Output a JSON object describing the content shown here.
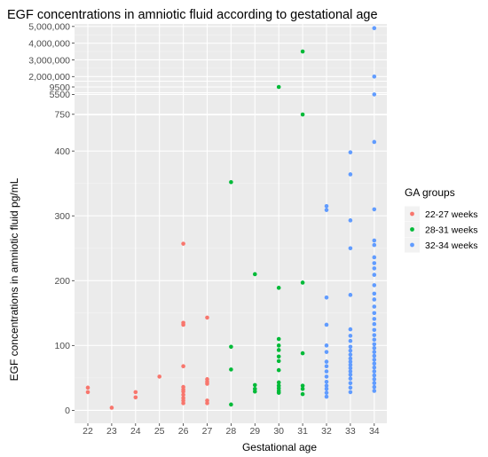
{
  "chart_data": {
    "type": "scatter",
    "title": "EGF concentrations in amniotic fluid according to gestational age",
    "xlabel": "Gestational age",
    "ylabel": "EGF concentrations in amniotic fluid pg/mL",
    "x_ticks": [
      "22",
      "23",
      "24",
      "25",
      "26",
      "27",
      "28",
      "29",
      "30",
      "31",
      "32",
      "33",
      "34"
    ],
    "y_axis_segments": [
      {
        "ticks": [
          "5,000,000",
          "4,000,000",
          "3,000,000",
          "2,000,000"
        ]
      },
      {
        "ticks": [
          "9500"
        ]
      },
      {
        "ticks": [
          "5500",
          "750"
        ]
      },
      {
        "ticks": [
          "400",
          "300",
          "200",
          "100",
          "0"
        ]
      }
    ],
    "legend": {
      "title": "GA groups",
      "position": "right",
      "items": [
        "22-27 weeks",
        "28-31 weeks",
        "32-34 weeks"
      ]
    },
    "colors": {
      "22-27 weeks": "#f8766d",
      "28-31 weeks": "#00ba38",
      "32-34 weeks": "#619cff"
    },
    "series": [
      {
        "name": "22-27 weeks",
        "points": [
          [
            22,
            35
          ],
          [
            22,
            28
          ],
          [
            23,
            4
          ],
          [
            24,
            28
          ],
          [
            24,
            20
          ],
          [
            25,
            52
          ],
          [
            26,
            257
          ],
          [
            26,
            135
          ],
          [
            26,
            132
          ],
          [
            26,
            68
          ],
          [
            26,
            36
          ],
          [
            26,
            32
          ],
          [
            26,
            29
          ],
          [
            26,
            24
          ],
          [
            26,
            19
          ],
          [
            26,
            15
          ],
          [
            26,
            11
          ],
          [
            27,
            143
          ],
          [
            27,
            48
          ],
          [
            27,
            44
          ],
          [
            27,
            41
          ],
          [
            27,
            15
          ],
          [
            27,
            11
          ]
        ]
      },
      {
        "name": "28-31 weeks",
        "points": [
          [
            28,
            352
          ],
          [
            28,
            98
          ],
          [
            28,
            63
          ],
          [
            28,
            9
          ],
          [
            29,
            210
          ],
          [
            29,
            39
          ],
          [
            29,
            33
          ],
          [
            29,
            29
          ],
          [
            30,
            9500
          ],
          [
            30,
            189
          ],
          [
            30,
            110
          ],
          [
            30,
            100
          ],
          [
            30,
            93
          ],
          [
            30,
            83
          ],
          [
            30,
            76
          ],
          [
            30,
            62
          ],
          [
            30,
            43
          ],
          [
            30,
            38
          ],
          [
            30,
            34
          ],
          [
            30,
            30
          ],
          [
            30,
            27
          ],
          [
            31,
            3500000
          ],
          [
            31,
            700
          ],
          [
            31,
            197
          ],
          [
            31,
            88
          ],
          [
            31,
            38
          ],
          [
            31,
            33
          ],
          [
            31,
            25
          ]
        ]
      },
      {
        "name": "32-34 weeks",
        "points": [
          [
            32,
            315
          ],
          [
            32,
            309
          ],
          [
            32,
            174
          ],
          [
            32,
            132
          ],
          [
            32,
            100
          ],
          [
            32,
            90
          ],
          [
            32,
            75
          ],
          [
            32,
            68
          ],
          [
            32,
            60
          ],
          [
            32,
            52
          ],
          [
            32,
            44
          ],
          [
            32,
            38
          ],
          [
            32,
            33
          ],
          [
            32,
            27
          ],
          [
            32,
            21
          ],
          [
            33,
            398
          ],
          [
            33,
            364
          ],
          [
            33,
            293
          ],
          [
            33,
            250
          ],
          [
            33,
            178
          ],
          [
            33,
            125
          ],
          [
            33,
            115
          ],
          [
            33,
            107
          ],
          [
            33,
            98
          ],
          [
            33,
            92
          ],
          [
            33,
            86
          ],
          [
            33,
            80
          ],
          [
            33,
            75
          ],
          [
            33,
            70
          ],
          [
            33,
            65
          ],
          [
            33,
            60
          ],
          [
            33,
            55
          ],
          [
            33,
            49
          ],
          [
            33,
            42
          ],
          [
            33,
            35
          ],
          [
            33,
            28
          ],
          [
            34,
            4900000
          ],
          [
            34,
            2000000
          ],
          [
            34,
            5500
          ],
          [
            34,
            414
          ],
          [
            34,
            310
          ],
          [
            34,
            262
          ],
          [
            34,
            255
          ],
          [
            34,
            236
          ],
          [
            34,
            227
          ],
          [
            34,
            219
          ],
          [
            34,
            209
          ],
          [
            34,
            193
          ],
          [
            34,
            180
          ],
          [
            34,
            171
          ],
          [
            34,
            160
          ],
          [
            34,
            150
          ],
          [
            34,
            141
          ],
          [
            34,
            133
          ],
          [
            34,
            124
          ],
          [
            34,
            116
          ],
          [
            34,
            109
          ],
          [
            34,
            102
          ],
          [
            34,
            96
          ],
          [
            34,
            90
          ],
          [
            34,
            84
          ],
          [
            34,
            78
          ],
          [
            34,
            72
          ],
          [
            34,
            66
          ],
          [
            34,
            60
          ],
          [
            34,
            54
          ],
          [
            34,
            48
          ],
          [
            34,
            42
          ],
          [
            34,
            36
          ],
          [
            34,
            30
          ]
        ]
      }
    ]
  }
}
